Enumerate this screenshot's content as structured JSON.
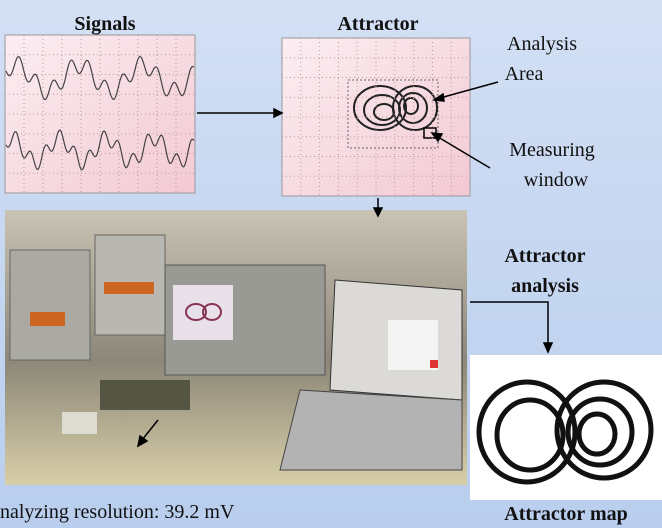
{
  "labels": {
    "signals": "Signals",
    "attractor": "Attractor",
    "analysis_area": [
      "Analysis",
      "Area"
    ],
    "measuring_window": [
      "Measuring",
      "window"
    ],
    "attractor_analysis": [
      "Attractor",
      "analysis"
    ],
    "attractor_map": "Attractor map",
    "resolution": "nalyzing resolution: 39.2 mV"
  }
}
